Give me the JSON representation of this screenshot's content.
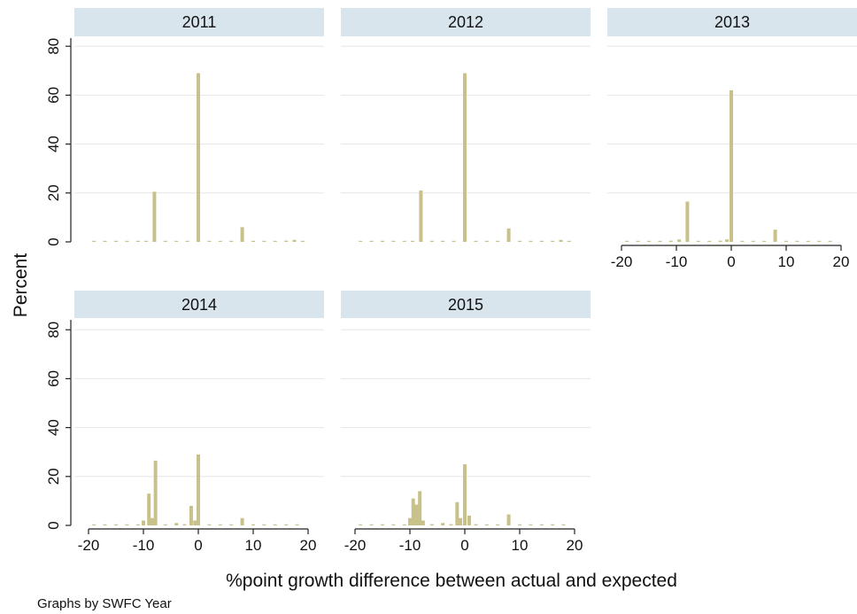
{
  "chart_data": {
    "type": "bar",
    "subtype": "histogram-by-panel",
    "ylabel": "Percent",
    "xlabel": "%point growth difference between actual and expected",
    "note": "Graphs by SWFC Year",
    "xlim": [
      -20,
      20
    ],
    "ylim": [
      0,
      80
    ],
    "xticks": [
      "-20",
      "-10",
      "0",
      "10",
      "20"
    ],
    "yticks": [
      "0",
      "20",
      "40",
      "60",
      "80"
    ],
    "colors": {
      "bar": "#c8c28a",
      "panel_header": "#d9e5ec",
      "grid": "#e6e6e6",
      "axis": "#222222"
    },
    "panels": [
      {
        "title": "2011",
        "bars": [
          {
            "x": -19,
            "y": 0.3
          },
          {
            "x": -17,
            "y": 0.3
          },
          {
            "x": -15,
            "y": 0.3
          },
          {
            "x": -13,
            "y": 0.3
          },
          {
            "x": -11,
            "y": 0.3
          },
          {
            "x": -9.5,
            "y": 0.3
          },
          {
            "x": -8,
            "y": 20.5
          },
          {
            "x": -6,
            "y": 0.3
          },
          {
            "x": -4,
            "y": 0.3
          },
          {
            "x": -2,
            "y": 0.3
          },
          {
            "x": 0,
            "y": 69
          },
          {
            "x": 2,
            "y": 0.3
          },
          {
            "x": 4,
            "y": 0.3
          },
          {
            "x": 6,
            "y": 0.3
          },
          {
            "x": 8,
            "y": 6
          },
          {
            "x": 10,
            "y": 0.3
          },
          {
            "x": 12,
            "y": 0.3
          },
          {
            "x": 14,
            "y": 0.3
          },
          {
            "x": 16,
            "y": 0.5
          },
          {
            "x": 17.5,
            "y": 0.8
          },
          {
            "x": 19,
            "y": 0.4
          }
        ]
      },
      {
        "title": "2012",
        "bars": [
          {
            "x": -19,
            "y": 0.3
          },
          {
            "x": -17,
            "y": 0.3
          },
          {
            "x": -15,
            "y": 0.3
          },
          {
            "x": -13,
            "y": 0.3
          },
          {
            "x": -11,
            "y": 0.3
          },
          {
            "x": -9.5,
            "y": 0.3
          },
          {
            "x": -8,
            "y": 21
          },
          {
            "x": -6,
            "y": 0.3
          },
          {
            "x": -4,
            "y": 0.3
          },
          {
            "x": -2,
            "y": 0.3
          },
          {
            "x": 0,
            "y": 69
          },
          {
            "x": 2,
            "y": 0.3
          },
          {
            "x": 4,
            "y": 0.3
          },
          {
            "x": 6,
            "y": 0.3
          },
          {
            "x": 8,
            "y": 5.5
          },
          {
            "x": 10,
            "y": 0.3
          },
          {
            "x": 12,
            "y": 0.3
          },
          {
            "x": 14,
            "y": 0.3
          },
          {
            "x": 16,
            "y": 0.3
          },
          {
            "x": 17.5,
            "y": 0.8
          },
          {
            "x": 19,
            "y": 0.4
          }
        ]
      },
      {
        "title": "2013",
        "bars": [
          {
            "x": -19,
            "y": 0.3
          },
          {
            "x": -17,
            "y": 0.3
          },
          {
            "x": -15,
            "y": 0.3
          },
          {
            "x": -13,
            "y": 0.3
          },
          {
            "x": -11,
            "y": 0.5
          },
          {
            "x": -9.5,
            "y": 1
          },
          {
            "x": -8,
            "y": 16.5
          },
          {
            "x": -6,
            "y": 0.3
          },
          {
            "x": -4,
            "y": 0.3
          },
          {
            "x": -2,
            "y": 0.5
          },
          {
            "x": -0.8,
            "y": 1
          },
          {
            "x": 0,
            "y": 62
          },
          {
            "x": 2,
            "y": 0.3
          },
          {
            "x": 4,
            "y": 0.3
          },
          {
            "x": 6,
            "y": 0.3
          },
          {
            "x": 8,
            "y": 5
          },
          {
            "x": 10,
            "y": 0.3
          },
          {
            "x": 12,
            "y": 0.3
          },
          {
            "x": 14,
            "y": 0.3
          },
          {
            "x": 16,
            "y": 0.3
          },
          {
            "x": 18,
            "y": 0.3
          }
        ]
      },
      {
        "title": "2014",
        "bars": [
          {
            "x": -19,
            "y": 0.3
          },
          {
            "x": -17,
            "y": 0.3
          },
          {
            "x": -15,
            "y": 0.3
          },
          {
            "x": -13,
            "y": 0.3
          },
          {
            "x": -11,
            "y": 0.3
          },
          {
            "x": -10,
            "y": 2
          },
          {
            "x": -9,
            "y": 13
          },
          {
            "x": -8.4,
            "y": 3
          },
          {
            "x": -7.8,
            "y": 26.5
          },
          {
            "x": -6,
            "y": 0.3
          },
          {
            "x": -4,
            "y": 1
          },
          {
            "x": -2.5,
            "y": 0.5
          },
          {
            "x": -1.3,
            "y": 8
          },
          {
            "x": -0.6,
            "y": 2
          },
          {
            "x": 0,
            "y": 29
          },
          {
            "x": 2,
            "y": 0.3
          },
          {
            "x": 4,
            "y": 0.3
          },
          {
            "x": 6,
            "y": 0.3
          },
          {
            "x": 8,
            "y": 3
          },
          {
            "x": 10,
            "y": 0.3
          },
          {
            "x": 12,
            "y": 0.3
          },
          {
            "x": 14,
            "y": 0.3
          },
          {
            "x": 16,
            "y": 0.3
          },
          {
            "x": 18,
            "y": 0.3
          }
        ]
      },
      {
        "title": "2015",
        "bars": [
          {
            "x": -19,
            "y": 0.3
          },
          {
            "x": -17,
            "y": 0.3
          },
          {
            "x": -15,
            "y": 0.3
          },
          {
            "x": -13,
            "y": 0.3
          },
          {
            "x": -11,
            "y": 0.3
          },
          {
            "x": -10,
            "y": 3
          },
          {
            "x": -9.4,
            "y": 11
          },
          {
            "x": -8.8,
            "y": 8.5
          },
          {
            "x": -8.2,
            "y": 14
          },
          {
            "x": -7.6,
            "y": 2
          },
          {
            "x": -6,
            "y": 0.5
          },
          {
            "x": -4,
            "y": 1
          },
          {
            "x": -2.5,
            "y": 0.5
          },
          {
            "x": -1.4,
            "y": 9.5
          },
          {
            "x": -0.8,
            "y": 3
          },
          {
            "x": 0,
            "y": 25
          },
          {
            "x": 0.8,
            "y": 4
          },
          {
            "x": 2,
            "y": 0.5
          },
          {
            "x": 4,
            "y": 0.3
          },
          {
            "x": 6,
            "y": 0.3
          },
          {
            "x": 8,
            "y": 4.5
          },
          {
            "x": 10,
            "y": 0.3
          },
          {
            "x": 12,
            "y": 0.3
          },
          {
            "x": 14,
            "y": 0.3
          },
          {
            "x": 16,
            "y": 0.3
          },
          {
            "x": 18,
            "y": 0.3
          }
        ]
      }
    ]
  }
}
